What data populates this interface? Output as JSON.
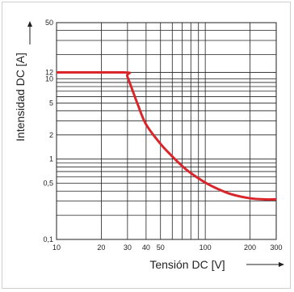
{
  "chart_data": {
    "type": "line",
    "title": "",
    "xlabel": "Tensión DC [V]",
    "ylabel": "Intensidad DC [A]",
    "x_scale": "log",
    "y_scale": "log",
    "xlim": [
      10,
      300
    ],
    "ylim": [
      0.1,
      50
    ],
    "grid": true,
    "x_ticks": [
      {
        "value": 10,
        "label": "10"
      },
      {
        "value": 20,
        "label": "20"
      },
      {
        "value": 30,
        "label": "30"
      },
      {
        "value": 40,
        "label": "40"
      },
      {
        "value": 50,
        "label": "50"
      },
      {
        "value": 100,
        "label": "100"
      },
      {
        "value": 200,
        "label": "200"
      },
      {
        "value": 300,
        "label": "300"
      }
    ],
    "y_ticks": [
      {
        "value": 0.1,
        "label": "0,1"
      },
      {
        "value": 0.5,
        "label": "0,5"
      },
      {
        "value": 1,
        "label": "1"
      },
      {
        "value": 2,
        "label": "2"
      },
      {
        "value": 5,
        "label": "5"
      },
      {
        "value": 10,
        "label": "10"
      },
      {
        "value": 12,
        "label": "12"
      },
      {
        "value": 50,
        "label": "50"
      }
    ],
    "x_gridlines": [
      10,
      20,
      30,
      40,
      50,
      60,
      70,
      80,
      90,
      100,
      200,
      300
    ],
    "y_gridlines": [
      0.1,
      0.2,
      0.3,
      0.4,
      0.5,
      0.6,
      0.7,
      0.8,
      0.9,
      1,
      2,
      3,
      4,
      5,
      6,
      7,
      8,
      9,
      10,
      12,
      20,
      30,
      40,
      50
    ],
    "series": [
      {
        "color": "#d9262b",
        "x": [
          10,
          28.5,
          30,
          35,
          40,
          50,
          60,
          70,
          80,
          100,
          120,
          150,
          200,
          250,
          300
        ],
        "y": [
          12,
          12,
          10.5,
          4.9,
          2.7,
          1.55,
          1.08,
          0.82,
          0.67,
          0.51,
          0.43,
          0.365,
          0.325,
          0.315,
          0.315
        ]
      }
    ]
  }
}
